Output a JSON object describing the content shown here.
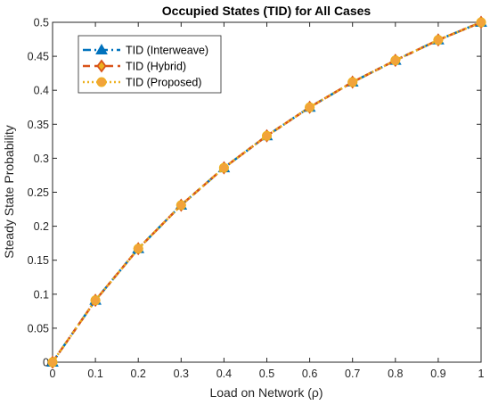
{
  "chart_data": {
    "type": "line",
    "title": "Occupied States (TID) for All Cases",
    "xlabel": "Load on Network (ρ)",
    "ylabel": "Steady State Probability",
    "xlim": [
      0,
      1
    ],
    "ylim": [
      0,
      0.5
    ],
    "xticks": [
      "0",
      "0.1",
      "0.2",
      "0.3",
      "0.4",
      "0.5",
      "0.6",
      "0.7",
      "0.8",
      "0.9",
      "1"
    ],
    "yticks": [
      "0",
      "0.05",
      "0.1",
      "0.15",
      "0.2",
      "0.25",
      "0.3",
      "0.35",
      "0.4",
      "0.45",
      "0.5"
    ],
    "grid": false,
    "legend_position": "top-left",
    "x": [
      0,
      0.1,
      0.2,
      0.3,
      0.4,
      0.5,
      0.6,
      0.7,
      0.8,
      0.9,
      1.0
    ],
    "series": [
      {
        "name": "TID (Interweave)",
        "values": [
          0,
          0.091,
          0.167,
          0.231,
          0.286,
          0.333,
          0.375,
          0.412,
          0.444,
          0.474,
          0.5
        ],
        "color": "#0072BD",
        "line_style": "dashdot",
        "marker": "triangle"
      },
      {
        "name": "TID (Hybrid)",
        "values": [
          0,
          0.091,
          0.167,
          0.231,
          0.286,
          0.333,
          0.375,
          0.412,
          0.444,
          0.474,
          0.5
        ],
        "color": "#D95319",
        "line_style": "dashed",
        "marker": "diamond"
      },
      {
        "name": "TID (Proposed)",
        "values": [
          0,
          0.091,
          0.167,
          0.231,
          0.286,
          0.333,
          0.375,
          0.412,
          0.444,
          0.474,
          0.5
        ],
        "color": "#EDB120",
        "line_style": "dotted",
        "marker": "circle"
      }
    ]
  }
}
